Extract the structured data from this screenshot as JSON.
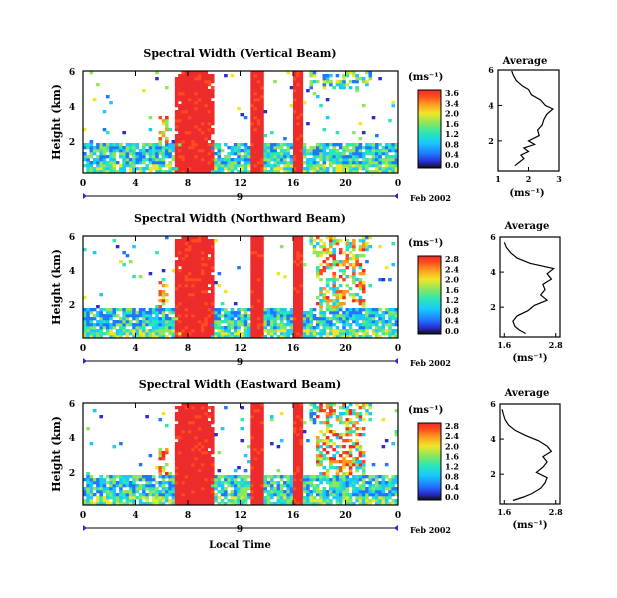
{
  "chart_data": [
    {
      "type": "heatmap",
      "title": "Spectral Width (Vertical Beam)",
      "ylabel": "Height (km)",
      "y_ticks": [
        "2",
        "4",
        "6"
      ],
      "x_ticks": [
        "0",
        "4",
        "8",
        "12",
        "16",
        "20",
        "0"
      ],
      "day_label": "9",
      "date_label": "Feb 2002",
      "colorbar_unit": "(ms⁻¹)",
      "colorbar_ticks": [
        "3.6",
        "3.4",
        "2.0",
        "1.6",
        "1.2",
        "0.8",
        "0.4",
        "0.0"
      ],
      "profile": {
        "title": "Average",
        "xlabel": "(ms⁻¹)",
        "x_ticks": [
          "1",
          "2",
          "3"
        ],
        "y_ticks": [
          "2",
          "4",
          "6"
        ],
        "xlim": [
          1,
          3
        ],
        "ylim": [
          0.3,
          6
        ],
        "points": [
          [
            1.55,
            0.6
          ],
          [
            1.7,
            0.8
          ],
          [
            1.85,
            1.0
          ],
          [
            1.75,
            1.2
          ],
          [
            2.0,
            1.4
          ],
          [
            1.85,
            1.6
          ],
          [
            2.2,
            1.8
          ],
          [
            2.0,
            2.0
          ],
          [
            2.35,
            2.3
          ],
          [
            2.3,
            2.6
          ],
          [
            2.45,
            2.9
          ],
          [
            2.5,
            3.2
          ],
          [
            2.6,
            3.5
          ],
          [
            2.8,
            3.8
          ],
          [
            2.55,
            4.0
          ],
          [
            2.4,
            4.3
          ],
          [
            2.1,
            4.6
          ],
          [
            2.0,
            4.9
          ],
          [
            1.8,
            5.1
          ],
          [
            1.6,
            5.4
          ],
          [
            1.5,
            5.7
          ],
          [
            1.45,
            5.95
          ]
        ]
      }
    },
    {
      "type": "heatmap",
      "title": "Spectral Width (Northward Beam)",
      "ylabel": "Height (km)",
      "y_ticks": [
        "2",
        "4",
        "6"
      ],
      "x_ticks": [
        "0",
        "4",
        "8",
        "12",
        "16",
        "20",
        "0"
      ],
      "day_label": "9",
      "date_label": "Feb 2002",
      "colorbar_unit": "(ms⁻¹)",
      "colorbar_ticks": [
        "2.8",
        "2.4",
        "2.0",
        "1.6",
        "1.2",
        "0.8",
        "0.4",
        "0.0"
      ],
      "profile": {
        "title": "Average",
        "xlabel": "(ms⁻¹)",
        "x_ticks": [
          "1.6",
          "2.8"
        ],
        "y_ticks": [
          "2",
          "4",
          "6"
        ],
        "xlim": [
          1.5,
          2.9
        ],
        "ylim": [
          0.3,
          6
        ],
        "points": [
          [
            2.1,
            0.5
          ],
          [
            1.95,
            0.7
          ],
          [
            1.85,
            0.9
          ],
          [
            1.8,
            1.2
          ],
          [
            1.9,
            1.5
          ],
          [
            2.15,
            1.8
          ],
          [
            2.3,
            2.1
          ],
          [
            2.6,
            2.4
          ],
          [
            2.45,
            2.7
          ],
          [
            2.55,
            3.0
          ],
          [
            2.5,
            3.3
          ],
          [
            2.7,
            3.6
          ],
          [
            2.6,
            3.9
          ],
          [
            2.75,
            4.2
          ],
          [
            2.2,
            4.5
          ],
          [
            1.9,
            4.8
          ],
          [
            1.75,
            5.1
          ],
          [
            1.65,
            5.4
          ],
          [
            1.6,
            5.7
          ]
        ]
      }
    },
    {
      "type": "heatmap",
      "title": "Spectral Width (Eastward Beam)",
      "ylabel": "Height (km)",
      "y_ticks": [
        "2",
        "4",
        "6"
      ],
      "x_ticks": [
        "0",
        "4",
        "8",
        "12",
        "16",
        "20",
        "0"
      ],
      "day_label": "9",
      "date_label": "Feb 2002",
      "xlabel": "Local Time",
      "colorbar_unit": "(ms⁻¹)",
      "colorbar_ticks": [
        "2.8",
        "2.4",
        "2.0",
        "1.6",
        "1.2",
        "0.8",
        "0.4",
        "0.0"
      ],
      "profile": {
        "title": "Average",
        "xlabel": "(ms⁻¹)",
        "x_ticks": [
          "1.6",
          "2.8"
        ],
        "y_ticks": [
          "2",
          "4",
          "6"
        ],
        "xlim": [
          1.5,
          2.9
        ],
        "ylim": [
          0.3,
          6
        ],
        "points": [
          [
            1.8,
            0.5
          ],
          [
            2.05,
            0.7
          ],
          [
            2.25,
            0.9
          ],
          [
            2.45,
            1.2
          ],
          [
            2.55,
            1.5
          ],
          [
            2.6,
            1.8
          ],
          [
            2.35,
            2.1
          ],
          [
            2.5,
            2.4
          ],
          [
            2.6,
            2.7
          ],
          [
            2.5,
            3.0
          ],
          [
            2.7,
            3.3
          ],
          [
            2.6,
            3.6
          ],
          [
            2.4,
            3.9
          ],
          [
            2.1,
            4.2
          ],
          [
            1.85,
            4.5
          ],
          [
            1.7,
            4.8
          ],
          [
            1.62,
            5.1
          ],
          [
            1.58,
            5.4
          ],
          [
            1.55,
            5.7
          ]
        ]
      }
    }
  ],
  "colors": {
    "scale": [
      "#101010",
      "#2b2bd0",
      "#1e78ff",
      "#19c8ff",
      "#2ce6b4",
      "#8ee65a",
      "#f0e628",
      "#ff9a1e",
      "#ff4b1e",
      "#ee2b2b"
    ],
    "axis": "#000000"
  }
}
